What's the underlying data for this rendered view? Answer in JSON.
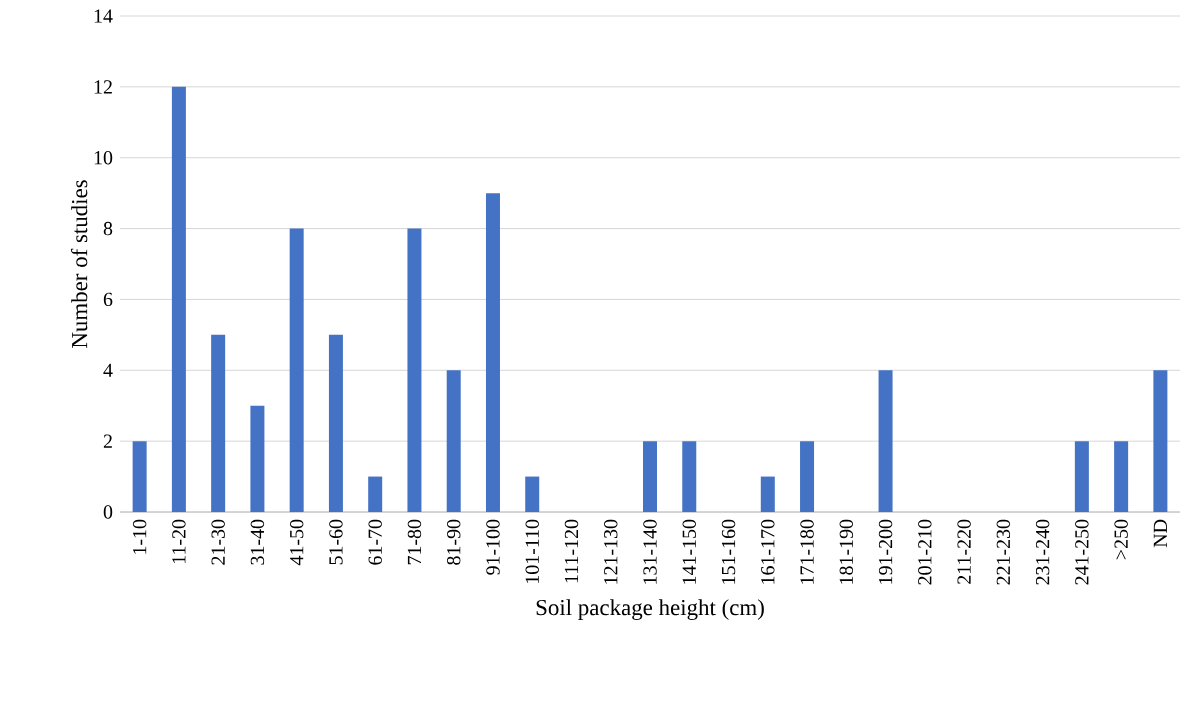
{
  "chart_data": {
    "type": "bar",
    "xlabel": "Soil package height (cm)",
    "ylabel": "Number of studies",
    "categories": [
      "1-10",
      "11-20",
      "21-30",
      "31-40",
      "41-50",
      "51-60",
      "61-70",
      "71-80",
      "81-90",
      "91-100",
      "101-110",
      "111-120",
      "121-130",
      "131-140",
      "141-150",
      "151-160",
      "161-170",
      "171-180",
      "181-190",
      "191-200",
      "201-210",
      "211-220",
      "221-230",
      "231-240",
      "241-250",
      ">250",
      "ND"
    ],
    "values": [
      2,
      12,
      5,
      3,
      8,
      5,
      1,
      8,
      4,
      9,
      1,
      0,
      0,
      2,
      2,
      0,
      1,
      2,
      0,
      4,
      0,
      0,
      0,
      0,
      2,
      2,
      4
    ],
    "color": "#4472c4",
    "ylim": [
      0,
      14
    ],
    "yticks": [
      0,
      2,
      4,
      6,
      8,
      10,
      12,
      14
    ],
    "grid": "y"
  }
}
